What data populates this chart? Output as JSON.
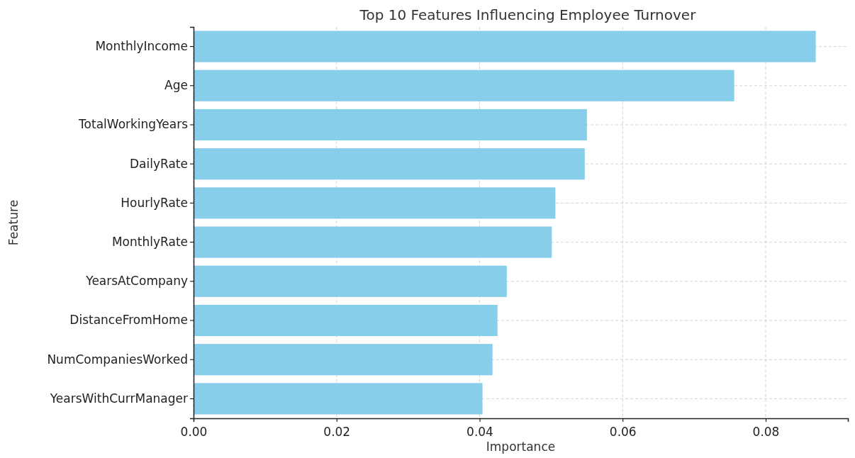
{
  "chart_data": {
    "type": "bar",
    "orientation": "horizontal",
    "title": "Top 10 Features Influencing Employee Turnover",
    "xlabel": "Importance",
    "ylabel": "Feature",
    "categories": [
      "MonthlyIncome",
      "Age",
      "TotalWorkingYears",
      "DailyRate",
      "HourlyRate",
      "MonthlyRate",
      "YearsAtCompany",
      "DistanceFromHome",
      "NumCompaniesWorked",
      "YearsWithCurrManager"
    ],
    "values": [
      0.087,
      0.0756,
      0.055,
      0.0547,
      0.0506,
      0.0501,
      0.0438,
      0.0425,
      0.0418,
      0.0404
    ],
    "color": "#87ceeb",
    "xlim": [
      0,
      0.0915
    ],
    "xticks": [
      {
        "value": 0,
        "label": "0.00"
      },
      {
        "value": 0.02,
        "label": "0.02"
      },
      {
        "value": 0.04,
        "label": "0.04"
      },
      {
        "value": 0.06,
        "label": "0.06"
      },
      {
        "value": 0.08,
        "label": "0.08"
      }
    ],
    "grid": true
  }
}
